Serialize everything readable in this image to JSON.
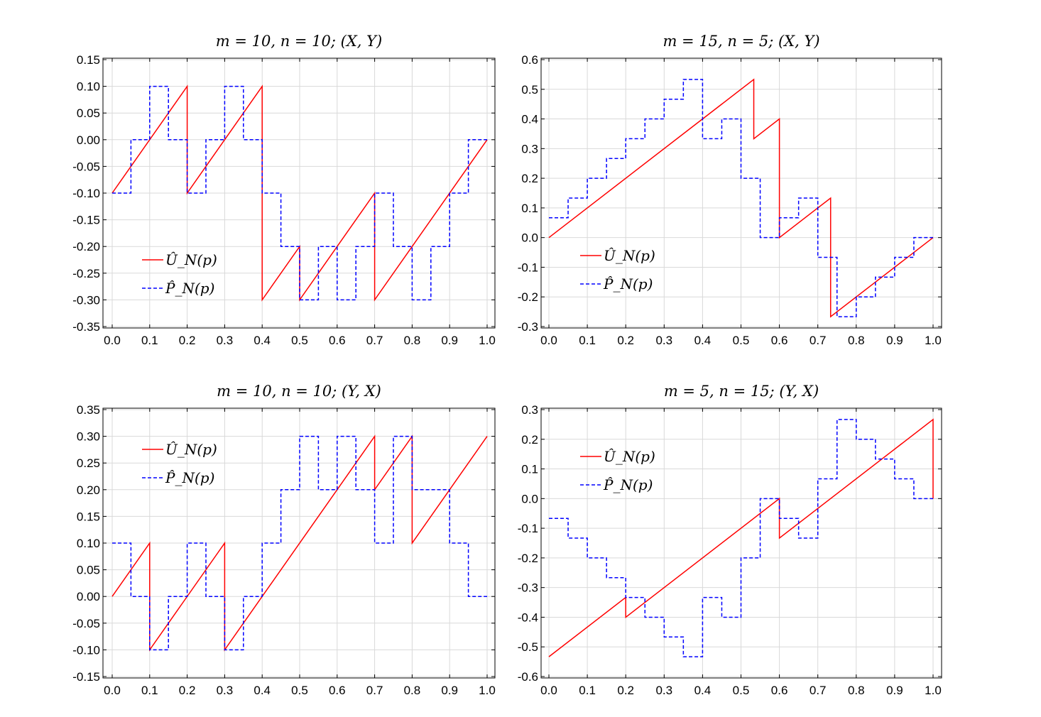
{
  "chart_data": [
    {
      "type": "line",
      "title": "m = 10,  n = 10;   (X, Y)",
      "xlim": [
        0,
        1
      ],
      "ylim": [
        -0.35,
        0.15
      ],
      "xticks": [
        "0.0",
        "0.1",
        "0.2",
        "0.3",
        "0.4",
        "0.5",
        "0.6",
        "0.7",
        "0.8",
        "0.9",
        "1.0"
      ],
      "yticks": [
        "0.15",
        "0.10",
        "0.05",
        "0.00",
        "-0.05",
        "-0.10",
        "-0.15",
        "-0.20",
        "-0.25",
        "-0.30",
        "-0.35"
      ],
      "grid": true,
      "legend_position": "lower-left",
      "series": [
        {
          "name": "Û_N(p)",
          "color": "#ff0000",
          "style": "solid",
          "x": [
            0,
            0.2,
            0.2,
            0.4,
            0.4,
            0.5,
            0.5,
            0.7,
            0.7,
            1.0
          ],
          "y": [
            -0.1,
            0.1,
            -0.1,
            0.1,
            -0.3,
            -0.2,
            -0.3,
            -0.1,
            -0.3,
            0.0
          ]
        },
        {
          "name": "P̂_N(p)",
          "color": "#0000ff",
          "style": "dashed",
          "x": [
            0,
            0.05,
            0.05,
            0.1,
            0.1,
            0.15,
            0.15,
            0.2,
            0.2,
            0.25,
            0.25,
            0.3,
            0.3,
            0.35,
            0.35,
            0.4,
            0.4,
            0.45,
            0.45,
            0.5,
            0.5,
            0.55,
            0.55,
            0.6,
            0.6,
            0.65,
            0.65,
            0.7,
            0.7,
            0.75,
            0.75,
            0.8,
            0.8,
            0.85,
            0.85,
            0.9,
            0.9,
            0.95,
            0.95,
            1.0
          ],
          "y": [
            -0.1,
            -0.1,
            0.0,
            0.0,
            0.1,
            0.1,
            0.0,
            0.0,
            -0.1,
            -0.1,
            0.0,
            0.0,
            0.1,
            0.1,
            0.0,
            0.0,
            -0.1,
            -0.1,
            -0.2,
            -0.2,
            -0.3,
            -0.3,
            -0.2,
            -0.2,
            -0.3,
            -0.3,
            -0.2,
            -0.2,
            -0.1,
            -0.1,
            -0.2,
            -0.2,
            -0.3,
            -0.3,
            -0.2,
            -0.2,
            -0.1,
            -0.1,
            0.0,
            0.0
          ]
        }
      ]
    },
    {
      "type": "line",
      "title": "m = 15,  n = 5;   (X, Y)",
      "xlim": [
        0,
        1
      ],
      "ylim": [
        -0.3,
        0.6
      ],
      "xticks": [
        "0.0",
        "0.1",
        "0.2",
        "0.3",
        "0.4",
        "0.5",
        "0.6",
        "0.7",
        "0.8",
        "0.9",
        "1.0"
      ],
      "yticks": [
        "0.6",
        "0.5",
        "0.4",
        "0.3",
        "0.2",
        "0.1",
        "0.0",
        "-0.1",
        "-0.2",
        "-0.3"
      ],
      "grid": true,
      "legend_position": "lower-left",
      "series": [
        {
          "name": "Û_N(p)",
          "color": "#ff0000",
          "style": "solid",
          "x": [
            0,
            0.5333,
            0.5333,
            0.6,
            0.6,
            0.7333,
            0.7333,
            1.0
          ],
          "y": [
            0.0,
            0.5333,
            0.3333,
            0.4,
            0.0,
            0.1333,
            -0.2667,
            0.0
          ]
        },
        {
          "name": "P̂_N(p)",
          "color": "#0000ff",
          "style": "dashed",
          "x": [
            0,
            0.05,
            0.05,
            0.1,
            0.1,
            0.15,
            0.15,
            0.2,
            0.2,
            0.25,
            0.25,
            0.3,
            0.3,
            0.35,
            0.35,
            0.4,
            0.4,
            0.45,
            0.45,
            0.5,
            0.5,
            0.55,
            0.55,
            0.6,
            0.6,
            0.65,
            0.65,
            0.7,
            0.7,
            0.75,
            0.75,
            0.8,
            0.8,
            0.85,
            0.85,
            0.9,
            0.9,
            0.95,
            0.95,
            1.0
          ],
          "y": [
            0.0667,
            0.0667,
            0.1333,
            0.1333,
            0.2,
            0.2,
            0.2667,
            0.2667,
            0.3333,
            0.3333,
            0.4,
            0.4,
            0.4667,
            0.4667,
            0.5333,
            0.5333,
            0.3333,
            0.3333,
            0.4,
            0.4,
            0.2,
            0.2,
            0.0,
            0.0,
            0.0667,
            0.0667,
            0.1333,
            0.1333,
            -0.0667,
            -0.0667,
            -0.2667,
            -0.2667,
            -0.2,
            -0.2,
            -0.1333,
            -0.1333,
            -0.0667,
            -0.0667,
            0.0,
            0.0
          ]
        }
      ]
    },
    {
      "type": "line",
      "title": "m = 10,  n = 10;   (Y, X)",
      "xlim": [
        0,
        1
      ],
      "ylim": [
        -0.15,
        0.35
      ],
      "xticks": [
        "0.0",
        "0.1",
        "0.2",
        "0.3",
        "0.4",
        "0.5",
        "0.6",
        "0.7",
        "0.8",
        "0.9",
        "1.0"
      ],
      "yticks": [
        "0.35",
        "0.30",
        "0.25",
        "0.20",
        "0.15",
        "0.10",
        "0.05",
        "0.00",
        "-0.05",
        "-0.10",
        "-0.15"
      ],
      "grid": true,
      "legend_position": "upper-left",
      "series": [
        {
          "name": "Û_N(p)",
          "color": "#ff0000",
          "style": "solid",
          "x": [
            0,
            0.1,
            0.1,
            0.3,
            0.3,
            0.7,
            0.7,
            0.8,
            0.8,
            1.0
          ],
          "y": [
            0.0,
            0.1,
            -0.1,
            0.1,
            -0.1,
            0.3,
            0.2,
            0.3,
            0.1,
            0.3
          ]
        },
        {
          "name": "P̂_N(p)",
          "color": "#0000ff",
          "style": "dashed",
          "x": [
            0,
            0.05,
            0.05,
            0.1,
            0.1,
            0.15,
            0.15,
            0.2,
            0.2,
            0.25,
            0.25,
            0.3,
            0.3,
            0.35,
            0.35,
            0.4,
            0.4,
            0.45,
            0.45,
            0.5,
            0.5,
            0.55,
            0.55,
            0.6,
            0.6,
            0.65,
            0.65,
            0.7,
            0.7,
            0.75,
            0.75,
            0.8,
            0.8,
            0.85,
            0.85,
            0.9,
            0.9,
            0.95,
            0.95,
            1.0
          ],
          "y": [
            0.1,
            0.1,
            0.0,
            0.0,
            -0.1,
            -0.1,
            0.0,
            0.0,
            0.1,
            0.1,
            0.0,
            0.0,
            -0.1,
            -0.1,
            0.0,
            0.0,
            0.1,
            0.1,
            0.2,
            0.2,
            0.3,
            0.3,
            0.2,
            0.2,
            0.3,
            0.3,
            0.2,
            0.2,
            0.1,
            0.1,
            0.3,
            0.3,
            0.2,
            0.2,
            0.2,
            0.2,
            0.1,
            0.1,
            0.0,
            0.0
          ]
        }
      ]
    },
    {
      "type": "line",
      "title": "m = 5,  n = 15;   (Y, X)",
      "xlim": [
        0,
        1
      ],
      "ylim": [
        -0.6,
        0.3
      ],
      "xticks": [
        "0.0",
        "0.1",
        "0.2",
        "0.3",
        "0.4",
        "0.5",
        "0.6",
        "0.7",
        "0.8",
        "0.9",
        "1.0"
      ],
      "yticks": [
        "0.3",
        "0.2",
        "0.1",
        "0.0",
        "-0.1",
        "-0.2",
        "-0.3",
        "-0.4",
        "-0.5",
        "-0.6"
      ],
      "grid": true,
      "legend_position": "upper-left",
      "series": [
        {
          "name": "Û_N(p)",
          "color": "#ff0000",
          "style": "solid",
          "x": [
            0,
            0.2,
            0.2,
            0.6,
            0.6,
            1.0,
            1.0
          ],
          "y": [
            -0.5333,
            -0.3333,
            -0.4,
            0.0,
            -0.1333,
            0.2667,
            0.0
          ]
        },
        {
          "name": "P̂_N(p)",
          "color": "#0000ff",
          "style": "dashed",
          "x": [
            0,
            0.05,
            0.05,
            0.1,
            0.1,
            0.15,
            0.15,
            0.2,
            0.2,
            0.25,
            0.25,
            0.3,
            0.3,
            0.35,
            0.35,
            0.4,
            0.4,
            0.45,
            0.45,
            0.5,
            0.5,
            0.55,
            0.55,
            0.6,
            0.6,
            0.65,
            0.65,
            0.7,
            0.7,
            0.75,
            0.75,
            0.8,
            0.8,
            0.85,
            0.85,
            0.9,
            0.9,
            0.95,
            0.95,
            1.0
          ],
          "y": [
            -0.0667,
            -0.0667,
            -0.1333,
            -0.1333,
            -0.2,
            -0.2,
            -0.2667,
            -0.2667,
            -0.3333,
            -0.3333,
            -0.4,
            -0.4,
            -0.4667,
            -0.4667,
            -0.5333,
            -0.5333,
            -0.3333,
            -0.3333,
            -0.4,
            -0.4,
            -0.2,
            -0.2,
            0.0,
            0.0,
            -0.0667,
            -0.0667,
            -0.1333,
            -0.1333,
            0.0667,
            0.0667,
            0.2667,
            0.2667,
            0.2,
            0.2,
            0.1333,
            0.1333,
            0.0667,
            0.0667,
            0.0,
            0.0
          ]
        }
      ]
    }
  ]
}
